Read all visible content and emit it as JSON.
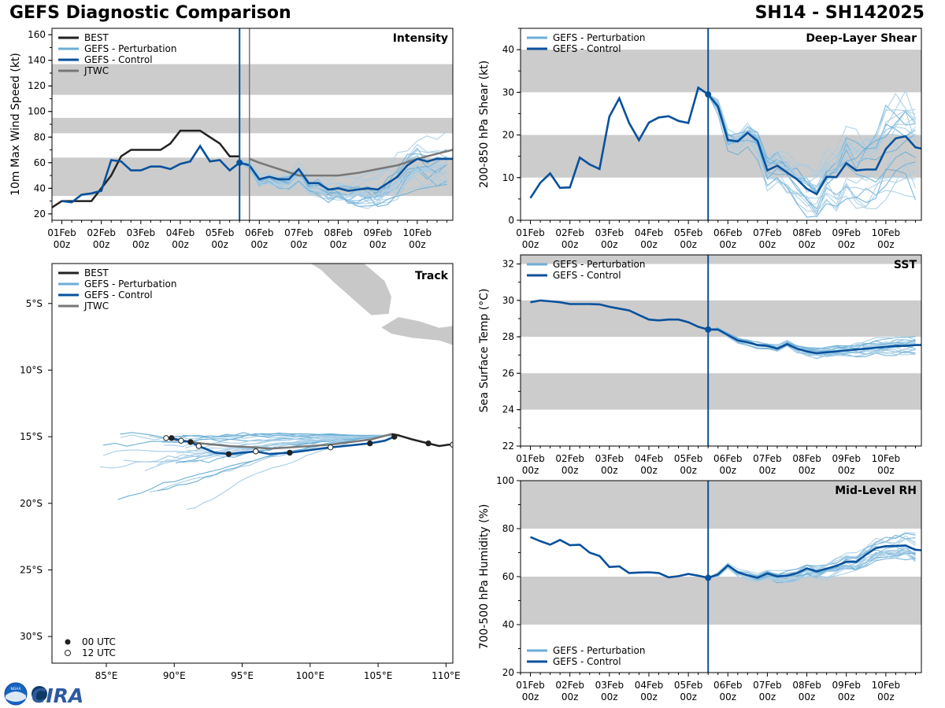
{
  "header": {
    "left_title": "GEFS Diagnostic Comparison",
    "right_title": "SH14 - SH142025"
  },
  "logo": {
    "text": "CIRA",
    "noaa": "NOAA"
  },
  "colors": {
    "best": "#222222",
    "perturbation": "#6baed6",
    "pert_light": "#a6cde6",
    "control": "#08519c",
    "jtwc": "#777777",
    "band": "#cccccc",
    "init_line": "#08519c",
    "jtwc_line": "#777777"
  },
  "time_axis": {
    "ticks": [
      {
        "l1": "01Feb",
        "l2": "00z"
      },
      {
        "l1": "02Feb",
        "l2": "00z"
      },
      {
        "l1": "03Feb",
        "l2": "00z"
      },
      {
        "l1": "04Feb",
        "l2": "00z"
      },
      {
        "l1": "05Feb",
        "l2": "00z"
      },
      {
        "l1": "06Feb",
        "l2": "00z"
      },
      {
        "l1": "07Feb",
        "l2": "00z"
      },
      {
        "l1": "08Feb",
        "l2": "00z"
      },
      {
        "l1": "09Feb",
        "l2": "00z"
      },
      {
        "l1": "10Feb",
        "l2": "00z"
      }
    ],
    "range_days": [
      -0.25,
      9.9
    ],
    "init_day": 4.5,
    "jtwc_day": 4.75
  },
  "legend_labels": {
    "best": "BEST",
    "pert": "GEFS - Perturbation",
    "ctrl": "GEFS - Control",
    "jtwc": "JTWC"
  },
  "chart_data": [
    {
      "id": "intensity",
      "type": "line",
      "title": "Intensity",
      "ylabel": "10m Max Wind Speed (kt)",
      "ylim": [
        15,
        165
      ],
      "yticks": [
        20,
        40,
        60,
        80,
        100,
        120,
        140,
        160
      ],
      "bands": [
        [
          34,
          64
        ],
        [
          83,
          95
        ],
        [
          113,
          137
        ]
      ],
      "best": {
        "t": [
          -0.25,
          0,
          0.25,
          0.5,
          0.75,
          1,
          1.25,
          1.5,
          1.75,
          2,
          2.25,
          2.5,
          2.75,
          3,
          3.25,
          3.5,
          3.75,
          4,
          4.25,
          4.5
        ],
        "v": [
          25,
          30,
          30,
          30,
          30,
          40,
          50,
          65,
          70,
          70,
          70,
          70,
          75,
          85,
          85,
          85,
          80,
          75,
          65,
          65
        ]
      },
      "control": {
        "t": [
          0,
          0.25,
          0.5,
          0.75,
          1,
          1.25,
          1.5,
          1.75,
          2,
          2.25,
          2.5,
          2.75,
          3,
          3.25,
          3.5,
          3.75,
          4,
          4.25,
          4.5,
          4.75,
          5,
          5.25,
          5.5,
          5.75,
          6,
          6.25,
          6.5,
          6.75,
          7,
          7.25,
          7.5,
          7.75,
          8,
          8.25,
          8.5,
          8.75,
          9,
          9.25,
          9.5,
          9.75,
          9.9
        ],
        "v": [
          30,
          29,
          35,
          36,
          38,
          62,
          61,
          54,
          54,
          57,
          57,
          55,
          59,
          61,
          73,
          61,
          62,
          54,
          60,
          58,
          47,
          49,
          47,
          47,
          55,
          44,
          44,
          39,
          40,
          38,
          39,
          40,
          39,
          44,
          49,
          58,
          63,
          61,
          63,
          63,
          63
        ]
      },
      "jtwc": {
        "t": [
          4.75,
          5,
          5.5,
          6,
          6.5,
          7,
          7.5,
          8,
          8.5,
          9,
          9.5,
          9.9
        ],
        "v": [
          63,
          60,
          55,
          50,
          50,
          50,
          52,
          55,
          58,
          63,
          67,
          70
        ]
      },
      "pert_seed": 11,
      "pert_count": 20,
      "pert_start": 60,
      "pert_spread": 14
    },
    {
      "id": "shear",
      "type": "line",
      "title": "Deep-Layer Shear",
      "ylabel": "200-850 hPa Shear (kt)",
      "ylim": [
        0,
        45
      ],
      "yticks": [
        0,
        10,
        20,
        30,
        40
      ],
      "bands": [
        [
          10,
          20
        ],
        [
          30,
          40
        ]
      ],
      "control": {
        "t": [
          0,
          0.25,
          0.5,
          0.75,
          1,
          1.25,
          1.5,
          1.75,
          2,
          2.25,
          2.5,
          2.75,
          3,
          3.25,
          3.5,
          3.75,
          4,
          4.25,
          4.5,
          4.75,
          5,
          5.25,
          5.5,
          5.75,
          6,
          6.25,
          6.5,
          6.75,
          7,
          7.25,
          7.5,
          7.75,
          8,
          8.25,
          8.5,
          8.75,
          9,
          9.25,
          9.5,
          9.75,
          9.9
        ],
        "v": [
          5.2,
          8.8,
          11,
          7.6,
          7.7,
          14.7,
          13.1,
          12,
          24.3,
          28.6,
          22.8,
          18.8,
          22.9,
          24.1,
          24.4,
          23.3,
          22.8,
          31.1,
          29.5,
          26.7,
          18.8,
          18.5,
          20.5,
          18.6,
          11.7,
          12.8,
          11.2,
          9.6,
          7.4,
          6.1,
          10.2,
          10.1,
          13.4,
          11.7,
          11.9,
          11.9,
          16.7,
          19.2,
          19.7,
          17.1,
          16.8
        ]
      },
      "pert_seed": 23,
      "pert_count": 20,
      "pert_start": 29.5,
      "pert_spread": 7
    },
    {
      "id": "sst",
      "type": "line",
      "title": "SST",
      "ylabel": "Sea Surface Temp (°C)",
      "ylim": [
        22,
        32.5
      ],
      "yticks": [
        22,
        24,
        26,
        28,
        30,
        32
      ],
      "bands": [
        [
          24,
          26
        ],
        [
          28,
          30
        ],
        [
          32,
          34
        ]
      ],
      "control": {
        "t": [
          0,
          0.25,
          0.5,
          0.75,
          1,
          1.25,
          1.5,
          1.75,
          2,
          2.25,
          2.5,
          2.75,
          3,
          3.25,
          3.5,
          3.75,
          4,
          4.25,
          4.5,
          4.75,
          5,
          5.25,
          5.5,
          5.75,
          6,
          6.25,
          6.5,
          6.75,
          7,
          7.25,
          7.5,
          7.75,
          8,
          8.25,
          8.5,
          8.75,
          9,
          9.25,
          9.5,
          9.75,
          9.9
        ],
        "v": [
          29.9,
          30,
          29.95,
          29.9,
          29.8,
          29.8,
          29.8,
          29.78,
          29.65,
          29.55,
          29.45,
          29.2,
          28.95,
          28.9,
          28.95,
          28.95,
          28.8,
          28.55,
          28.4,
          28.4,
          28.1,
          27.8,
          27.7,
          27.55,
          27.5,
          27.35,
          27.6,
          27.35,
          27.2,
          27.1,
          27.15,
          27.2,
          27.25,
          27.3,
          27.35,
          27.4,
          27.45,
          27.5,
          27.5,
          27.55,
          27.55
        ]
      },
      "pert_seed": 37,
      "pert_count": 20,
      "pert_start": 28.4,
      "pert_spread": 0.35
    },
    {
      "id": "rh",
      "type": "line",
      "title": "Mid-Level RH",
      "ylabel": "700-500 hPa Humidity (%)",
      "ylim": [
        20,
        100
      ],
      "yticks": [
        20,
        40,
        60,
        80,
        100
      ],
      "bands": [
        [
          40,
          60
        ],
        [
          80,
          100
        ]
      ],
      "control": {
        "t": [
          0,
          0.25,
          0.5,
          0.75,
          1,
          1.25,
          1.5,
          1.75,
          2,
          2.25,
          2.5,
          2.75,
          3,
          3.25,
          3.5,
          3.75,
          4,
          4.25,
          4.5,
          4.75,
          5,
          5.25,
          5.5,
          5.75,
          6,
          6.25,
          6.5,
          6.75,
          7,
          7.25,
          7.5,
          7.75,
          8,
          8.25,
          8.5,
          8.75,
          9,
          9.25,
          9.5,
          9.75,
          9.9
        ],
        "v": [
          76.5,
          74.8,
          73.3,
          75.3,
          73.1,
          73.3,
          70,
          68.6,
          64,
          64.3,
          61.5,
          61.7,
          61.8,
          61.5,
          59.7,
          60.2,
          61.1,
          60.4,
          59.5,
          60.9,
          64.7,
          61.8,
          60.6,
          59.5,
          61.3,
          60.1,
          60.4,
          61.4,
          63.4,
          62.2,
          63.3,
          64.5,
          66.2,
          66.1,
          69.2,
          71.9,
          72.7,
          72.8,
          73,
          71.2,
          71
        ]
      },
      "pert_seed": 51,
      "pert_count": 20,
      "pert_start": 59.5,
      "pert_spread": 4
    },
    {
      "id": "track",
      "type": "scatter",
      "title": "Track",
      "lon_range": [
        81,
        110.5
      ],
      "lat_range": [
        -32,
        -2
      ],
      "xticks": [
        {
          "v": 85,
          "l": "85°E"
        },
        {
          "v": 90,
          "l": "90°E"
        },
        {
          "v": 95,
          "l": "95°E"
        },
        {
          "v": 100,
          "l": "100°E"
        },
        {
          "v": 105,
          "l": "105°E"
        },
        {
          "v": 110,
          "l": "110°E"
        }
      ],
      "yticks": [
        {
          "v": -5,
          "l": "5°S"
        },
        {
          "v": -10,
          "l": "10°S"
        },
        {
          "v": -15,
          "l": "15°S"
        },
        {
          "v": -20,
          "l": "20°S"
        },
        {
          "v": -25,
          "l": "25°S"
        },
        {
          "v": -30,
          "l": "30°S"
        }
      ],
      "best": {
        "lon": [
          110.6,
          110.2,
          109.5,
          108.7,
          107.5,
          106.5,
          106.0
        ],
        "lat": [
          -15.6,
          -15.6,
          -15.7,
          -15.5,
          -15.2,
          -14.9,
          -14.8
        ]
      },
      "best_points": [
        {
          "lon": 108.7,
          "lat": -15.5,
          "f": 1
        },
        {
          "lon": 110.5,
          "lat": -15.6,
          "f": 0
        }
      ],
      "jtwc": {
        "lon": [
          106,
          104.5,
          101.5,
          98.5,
          97,
          96,
          94,
          92,
          90,
          89.3
        ],
        "lat": [
          -14.8,
          -15.2,
          -15.6,
          -15.8,
          -15.9,
          -15.8,
          -15.7,
          -15.5,
          -15.2,
          -15.1
        ]
      },
      "control": {
        "lon": [
          106.2,
          105.5,
          104.4,
          102.5,
          101.5,
          100,
          98.5,
          97,
          96,
          95,
          94,
          93,
          91.8,
          91.2,
          90.5,
          89.8
        ],
        "lat": [
          -15.0,
          -15.3,
          -15.5,
          -15.7,
          -15.8,
          -16.0,
          -16.2,
          -16.3,
          -16.1,
          -16.2,
          -16.3,
          -16.2,
          -15.7,
          -15.4,
          -15.3,
          -15.1
        ]
      },
      "control_points": [
        {
          "lon": 106.2,
          "lat": -15.0,
          "f": 1
        },
        {
          "lon": 104.4,
          "lat": -15.5,
          "f": 1
        },
        {
          "lon": 101.5,
          "lat": -15.8,
          "f": 0
        },
        {
          "lon": 98.5,
          "lat": -16.2,
          "f": 1
        },
        {
          "lon": 96,
          "lat": -16.1,
          "f": 0
        },
        {
          "lon": 94,
          "lat": -16.3,
          "f": 1
        },
        {
          "lon": 91.8,
          "lat": -15.7,
          "f": 0
        },
        {
          "lon": 91.2,
          "lat": -15.4,
          "f": 1
        },
        {
          "lon": 90.5,
          "lat": -15.3,
          "f": 0
        },
        {
          "lon": 89.8,
          "lat": -15.1,
          "f": 1
        },
        {
          "lon": 89.4,
          "lat": -15.1,
          "f": 0
        }
      ],
      "legend2": {
        "utc00": "00 UTC",
        "utc12": "12 UTC"
      },
      "pert_seed": 71,
      "pert_count": 22
    }
  ]
}
